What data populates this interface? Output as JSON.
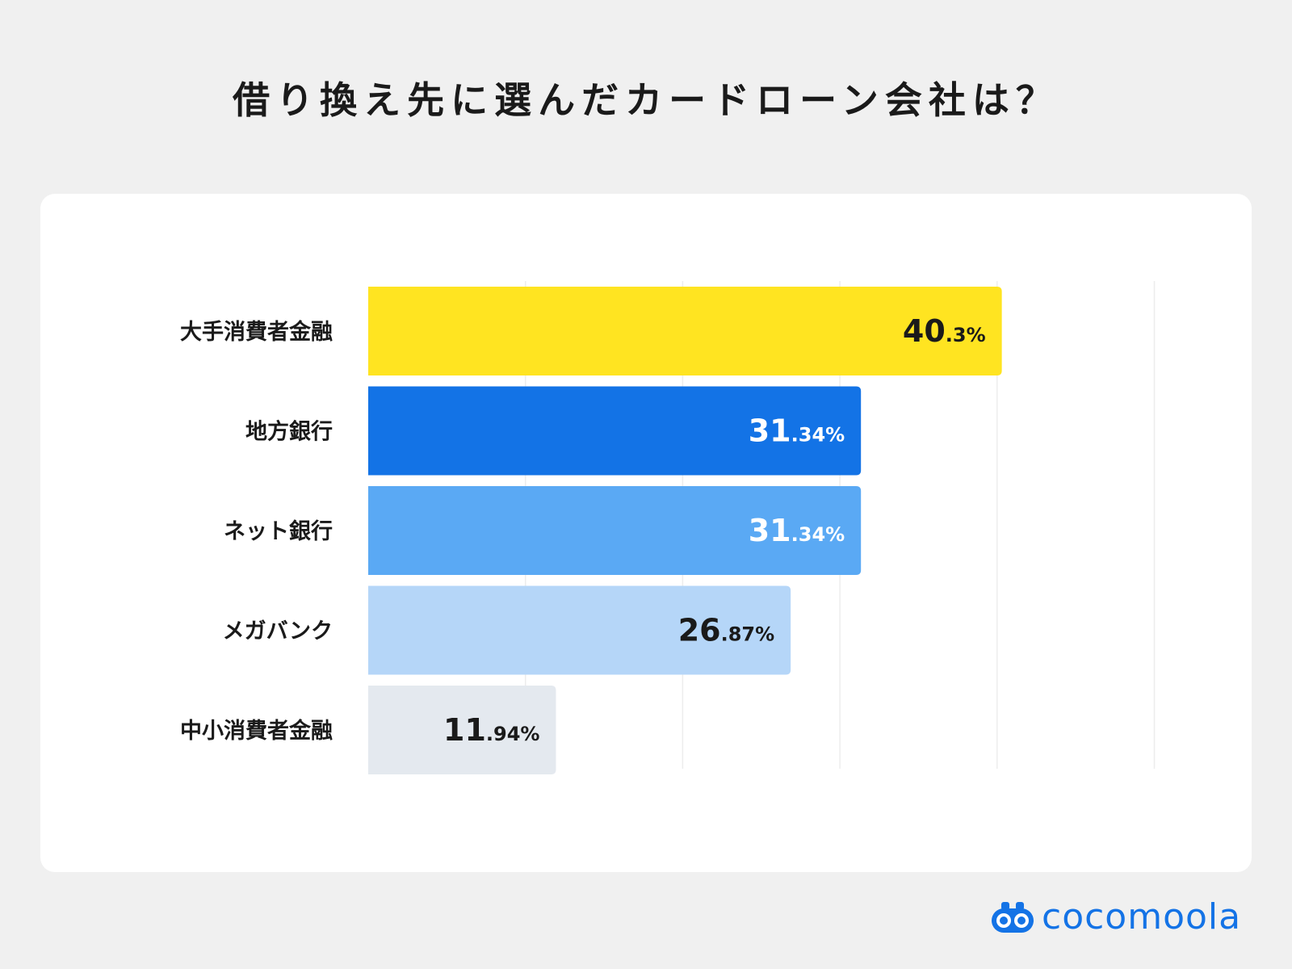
{
  "chart_data": {
    "type": "bar",
    "orientation": "horizontal",
    "title": "借り換え先に選んだカードローン会社は？",
    "categories": [
      "大手消費者金融",
      "地方銀行",
      "ネット銀行",
      "メガバンク",
      "中小消費者金融"
    ],
    "values": [
      40.3,
      31.34,
      31.34,
      26.87,
      11.94
    ],
    "value_labels": [
      {
        "main": "40",
        "decimal": ".3%"
      },
      {
        "main": "31",
        "decimal": ".34%"
      },
      {
        "main": "31",
        "decimal": ".34%"
      },
      {
        "main": "26",
        "decimal": ".87%"
      },
      {
        "main": "11",
        "decimal": ".94%"
      }
    ],
    "colors": [
      "#ffe421",
      "#1373e6",
      "#5aa9f4",
      "#b5d6f8",
      "#e4e9ef"
    ],
    "label_colors": [
      "#1a1a1a",
      "#ffffff",
      "#ffffff",
      "#1a1a1a",
      "#1a1a1a"
    ],
    "xlim": [
      0,
      50
    ],
    "grid": true,
    "xlabel": "",
    "ylabel": ""
  },
  "brand": {
    "name": "cocomoola",
    "logo_icon": "binoculars-icon",
    "color": "#1473e6"
  }
}
